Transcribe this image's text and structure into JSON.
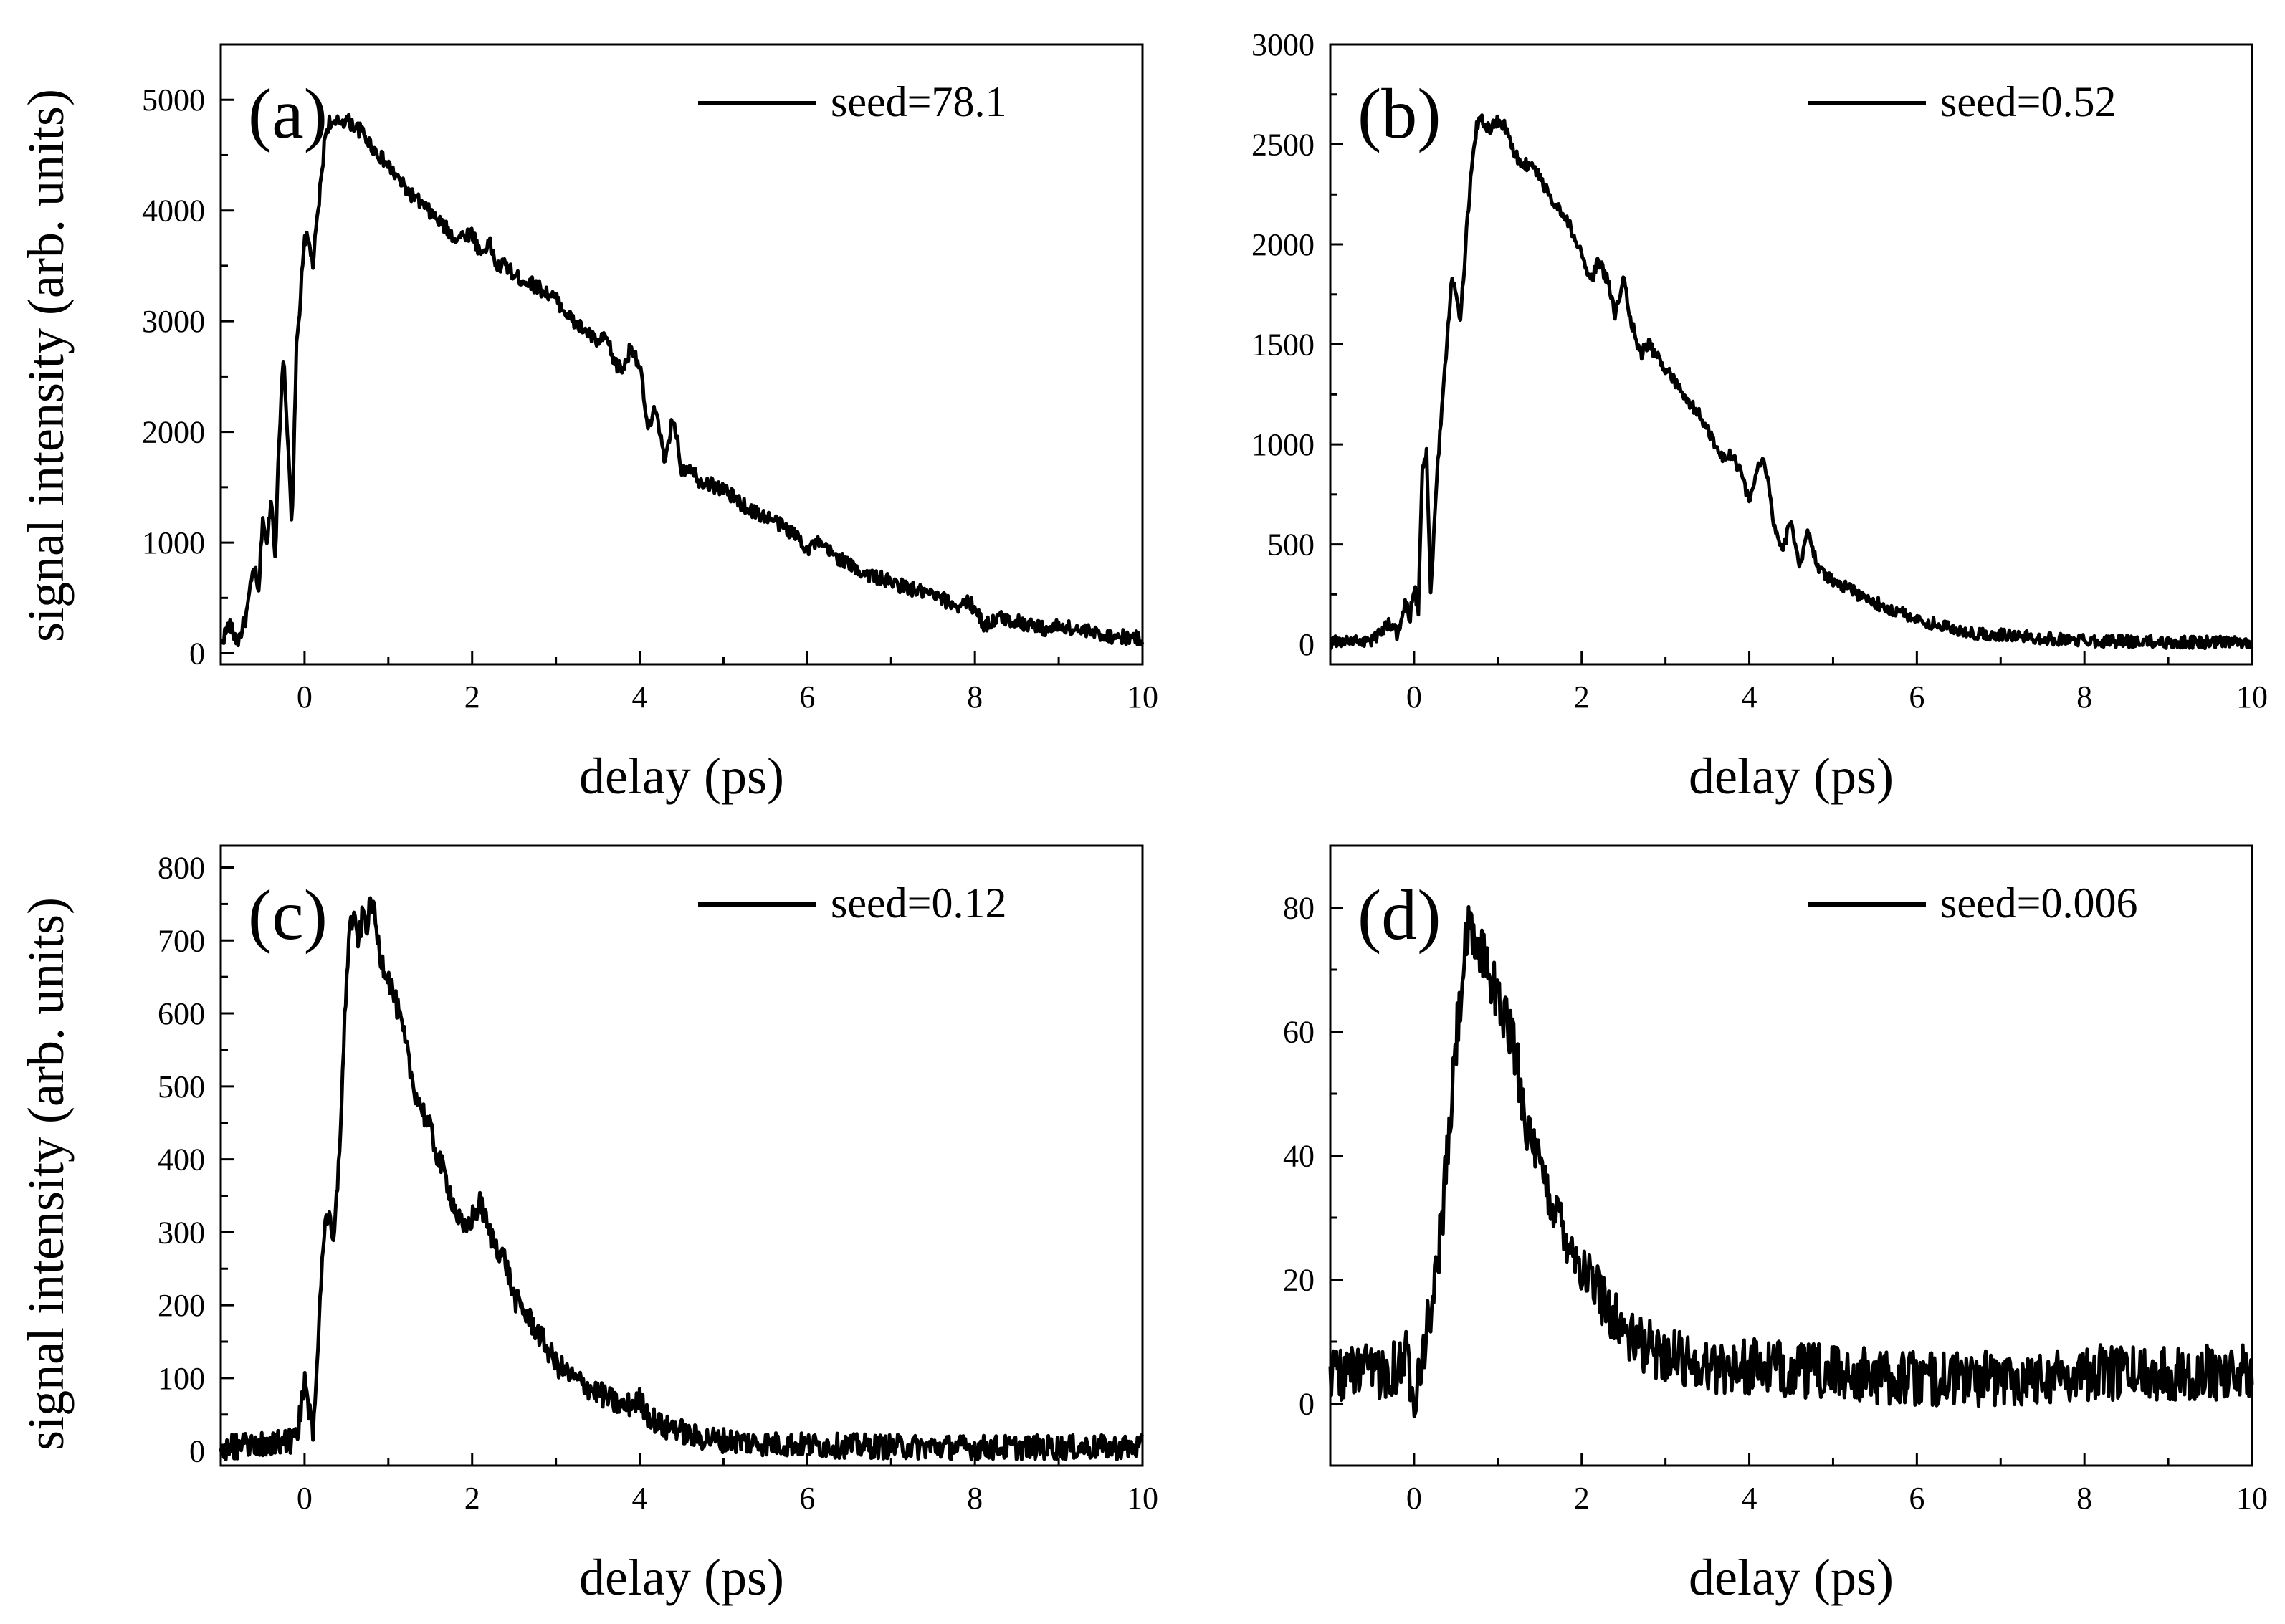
{
  "figure": {
    "ylabel_top": "signal intensity (arb. units)",
    "ylabel_bottom": "signal intensity (arb. units)",
    "line_color": "#000000",
    "background": "#ffffff"
  },
  "chart_data": [
    {
      "type": "line",
      "panel_label": "(a)",
      "legend": "seed=78.1",
      "legend_position": "top-right",
      "xlabel": "delay (ps)",
      "ylabel": "signal intensity (arb. units)",
      "xlim": [
        -1,
        10
      ],
      "ylim": [
        -100,
        5500
      ],
      "xticks": [
        0,
        2,
        4,
        6,
        8,
        10
      ],
      "yticks": [
        0,
        1000,
        2000,
        3000,
        4000,
        5000
      ],
      "noise": 0.012,
      "series": [
        {
          "name": "seed=78.1",
          "x": [
            -1.0,
            -0.9,
            -0.8,
            -0.7,
            -0.6,
            -0.55,
            -0.5,
            -0.45,
            -0.4,
            -0.35,
            -0.3,
            -0.25,
            -0.2,
            -0.15,
            -0.1,
            -0.05,
            0.0,
            0.05,
            0.1,
            0.15,
            0.2,
            0.25,
            0.3,
            0.35,
            0.4,
            0.5,
            0.6,
            0.7,
            0.8,
            1.0,
            1.2,
            1.5,
            1.8,
            2.0,
            2.1,
            2.2,
            2.3,
            2.4,
            2.5,
            2.6,
            2.8,
            3.0,
            3.2,
            3.4,
            3.5,
            3.6,
            3.7,
            3.8,
            3.9,
            4.0,
            4.1,
            4.2,
            4.3,
            4.4,
            4.5,
            4.6,
            4.7,
            5.0,
            5.3,
            5.6,
            5.9,
            6.0,
            6.1,
            6.3,
            6.6,
            7.0,
            7.5,
            7.8,
            7.9,
            8.0,
            8.1,
            8.3,
            8.6,
            8.9,
            9.0,
            9.3,
            9.6,
            10.0
          ],
          "y": [
            90,
            260,
            100,
            320,
            800,
            500,
            1250,
            950,
            1420,
            900,
            2000,
            2750,
            1900,
            1100,
            2700,
            3200,
            3780,
            3700,
            3520,
            3900,
            4300,
            4700,
            4810,
            4750,
            4800,
            4820,
            4760,
            4700,
            4580,
            4400,
            4200,
            3980,
            3750,
            3800,
            3600,
            3720,
            3480,
            3520,
            3400,
            3380,
            3300,
            3200,
            3000,
            2880,
            2800,
            2850,
            2620,
            2560,
            2780,
            2600,
            2000,
            2230,
            1680,
            2150,
            1650,
            1700,
            1570,
            1480,
            1300,
            1200,
            1050,
            940,
            1000,
            900,
            750,
            640,
            520,
            430,
            460,
            420,
            250,
            320,
            270,
            210,
            250,
            200,
            160,
            130
          ]
        }
      ]
    },
    {
      "type": "line",
      "panel_label": "(b)",
      "legend": "seed=0.52",
      "legend_position": "top-right",
      "xlabel": "delay (ps)",
      "ylabel": "",
      "xlim": [
        -1,
        10
      ],
      "ylim": [
        -100,
        3000
      ],
      "xticks": [
        0,
        2,
        4,
        6,
        8,
        10
      ],
      "yticks": [
        0,
        500,
        1000,
        1500,
        2000,
        2500,
        3000
      ],
      "noise": 0.01,
      "series": [
        {
          "name": "seed=0.52",
          "x": [
            -1.0,
            -0.5,
            -0.3,
            -0.2,
            -0.1,
            -0.05,
            0.0,
            0.05,
            0.1,
            0.15,
            0.2,
            0.25,
            0.3,
            0.35,
            0.4,
            0.45,
            0.5,
            0.55,
            0.6,
            0.65,
            0.7,
            0.75,
            0.8,
            0.9,
            1.0,
            1.1,
            1.2,
            1.3,
            1.4,
            1.5,
            1.6,
            1.7,
            1.8,
            1.9,
            2.0,
            2.1,
            2.2,
            2.3,
            2.4,
            2.5,
            2.6,
            2.7,
            2.8,
            3.0,
            3.2,
            3.4,
            3.6,
            3.7,
            3.8,
            3.9,
            4.0,
            4.1,
            4.15,
            4.2,
            4.3,
            4.4,
            4.5,
            4.6,
            4.7,
            4.8,
            4.9,
            5.0,
            5.3,
            5.6,
            6.0,
            6.3,
            6.6,
            7.0,
            7.5,
            8.0,
            8.5,
            9.0,
            10.0
          ],
          "y": [
            10,
            20,
            110,
            50,
            220,
            130,
            300,
            150,
            900,
            950,
            250,
            700,
            1000,
            1300,
            1550,
            1870,
            1750,
            1640,
            1900,
            2200,
            2450,
            2600,
            2620,
            2580,
            2620,
            2580,
            2450,
            2400,
            2400,
            2340,
            2250,
            2200,
            2150,
            2050,
            1950,
            1800,
            1920,
            1830,
            1650,
            1820,
            1600,
            1450,
            1500,
            1380,
            1250,
            1150,
            1000,
            920,
            960,
            850,
            720,
            880,
            930,
            860,
            600,
            470,
            620,
            380,
            580,
            400,
            350,
            320,
            250,
            190,
            130,
            90,
            60,
            50,
            30,
            20,
            15,
            10,
            10
          ]
        }
      ]
    },
    {
      "type": "line",
      "panel_label": "(c)",
      "legend": "seed=0.12",
      "legend_position": "top-right",
      "xlabel": "delay (ps)",
      "ylabel": "signal intensity (arb. units)",
      "xlim": [
        -1,
        10
      ],
      "ylim": [
        -20,
        830
      ],
      "xticks": [
        0,
        2,
        4,
        6,
        8,
        10
      ],
      "yticks": [
        0,
        100,
        200,
        300,
        400,
        500,
        600,
        700,
        800
      ],
      "noise": 0.02,
      "series": [
        {
          "name": "seed=0.12",
          "x": [
            -1.0,
            -0.5,
            -0.1,
            0.0,
            0.05,
            0.1,
            0.15,
            0.2,
            0.25,
            0.3,
            0.35,
            0.4,
            0.45,
            0.5,
            0.55,
            0.6,
            0.65,
            0.7,
            0.75,
            0.8,
            0.85,
            0.9,
            1.0,
            1.1,
            1.2,
            1.3,
            1.4,
            1.5,
            1.6,
            1.7,
            1.8,
            1.9,
            2.0,
            2.1,
            2.2,
            2.3,
            2.4,
            2.5,
            2.6,
            2.8,
            3.0,
            3.2,
            3.5,
            3.8,
            4.0,
            4.1,
            4.2,
            4.3,
            4.4,
            4.6,
            5.0,
            5.5,
            6.0,
            7.0,
            8.0,
            9.0,
            10.0
          ],
          "y": [
            5,
            8,
            15,
            95,
            60,
            20,
            130,
            240,
            330,
            310,
            280,
            380,
            500,
            650,
            730,
            720,
            700,
            740,
            720,
            760,
            720,
            680,
            650,
            610,
            560,
            500,
            470,
            440,
            400,
            370,
            330,
            300,
            320,
            340,
            300,
            280,
            260,
            210,
            195,
            160,
            120,
            100,
            80,
            60,
            70,
            50,
            40,
            30,
            35,
            20,
            15,
            10,
            8,
            6,
            5,
            5,
            5
          ]
        }
      ]
    },
    {
      "type": "line",
      "panel_label": "(d)",
      "legend": "seed=0.006",
      "legend_position": "top-right",
      "xlabel": "delay (ps)",
      "ylabel": "",
      "xlim": [
        -1,
        10
      ],
      "ylim": [
        -10,
        90
      ],
      "xticks": [
        0,
        2,
        4,
        6,
        8,
        10
      ],
      "yticks": [
        0,
        20,
        40,
        60,
        80
      ],
      "noise": 0.045,
      "series": [
        {
          "name": "seed=0.006",
          "x": [
            -1.0,
            -0.8,
            -0.5,
            -0.2,
            -0.1,
            0.0,
            0.1,
            0.2,
            0.3,
            0.4,
            0.5,
            0.6,
            0.65,
            0.7,
            0.8,
            0.9,
            1.0,
            1.1,
            1.2,
            1.3,
            1.4,
            1.5,
            1.6,
            1.8,
            2.0,
            2.2,
            2.4,
            2.6,
            3.0,
            3.5,
            4.0,
            5.0,
            6.0,
            7.0,
            8.0,
            9.0,
            10.0
          ],
          "y": [
            5,
            5,
            5,
            6,
            8,
            2,
            8,
            15,
            25,
            40,
            58,
            72,
            76,
            74,
            73,
            70,
            65,
            62,
            57,
            49,
            41,
            38,
            34,
            28,
            22,
            18,
            14,
            10,
            8,
            6,
            6,
            5,
            4,
            4,
            5,
            5,
            5
          ]
        }
      ]
    }
  ]
}
